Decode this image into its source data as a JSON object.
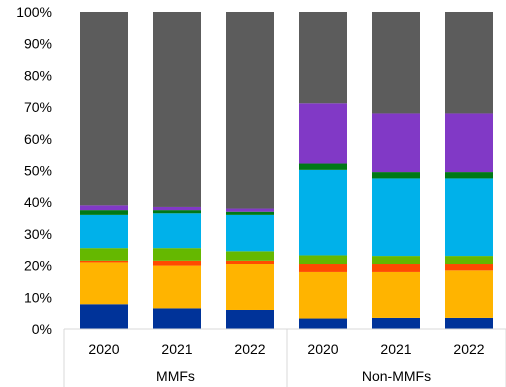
{
  "chart_data": {
    "type": "bar",
    "stacked": true,
    "percent": true,
    "ylim": [
      0,
      100
    ],
    "yticks": [
      "0%",
      "10%",
      "20%",
      "30%",
      "40%",
      "50%",
      "60%",
      "70%",
      "80%",
      "90%",
      "100%"
    ],
    "groups": [
      "MMFs",
      "Non-MMFs"
    ],
    "categories": [
      "2020",
      "2021",
      "2022",
      "2020",
      "2021",
      "2022"
    ],
    "category_groups": [
      0,
      0,
      0,
      1,
      1,
      1
    ],
    "series": [
      {
        "color": "#003399",
        "values": [
          7.8,
          6.5,
          6.0,
          3.3,
          3.5,
          3.5
        ]
      },
      {
        "color": "#ffb400",
        "values": [
          13.2,
          13.5,
          14.5,
          14.7,
          14.5,
          15.0
        ]
      },
      {
        "color": "#ff4b00",
        "values": [
          0.5,
          1.5,
          1.0,
          2.5,
          2.5,
          2.0
        ]
      },
      {
        "color": "#65b800",
        "values": [
          4.0,
          4.0,
          3.0,
          2.7,
          2.5,
          2.5
        ]
      },
      {
        "color": "#00b1ea",
        "values": [
          10.5,
          11.0,
          11.5,
          27.0,
          24.5,
          24.5
        ]
      },
      {
        "color": "#007816",
        "values": [
          1.5,
          1.0,
          1.0,
          2.0,
          2.0,
          2.0
        ]
      },
      {
        "color": "#8139c6",
        "values": [
          1.5,
          1.0,
          1.0,
          19.0,
          18.5,
          18.5
        ]
      },
      {
        "color": "#5c5c5c",
        "values": [
          61.0,
          61.5,
          62.0,
          28.8,
          32.0,
          32.0
        ]
      }
    ]
  }
}
